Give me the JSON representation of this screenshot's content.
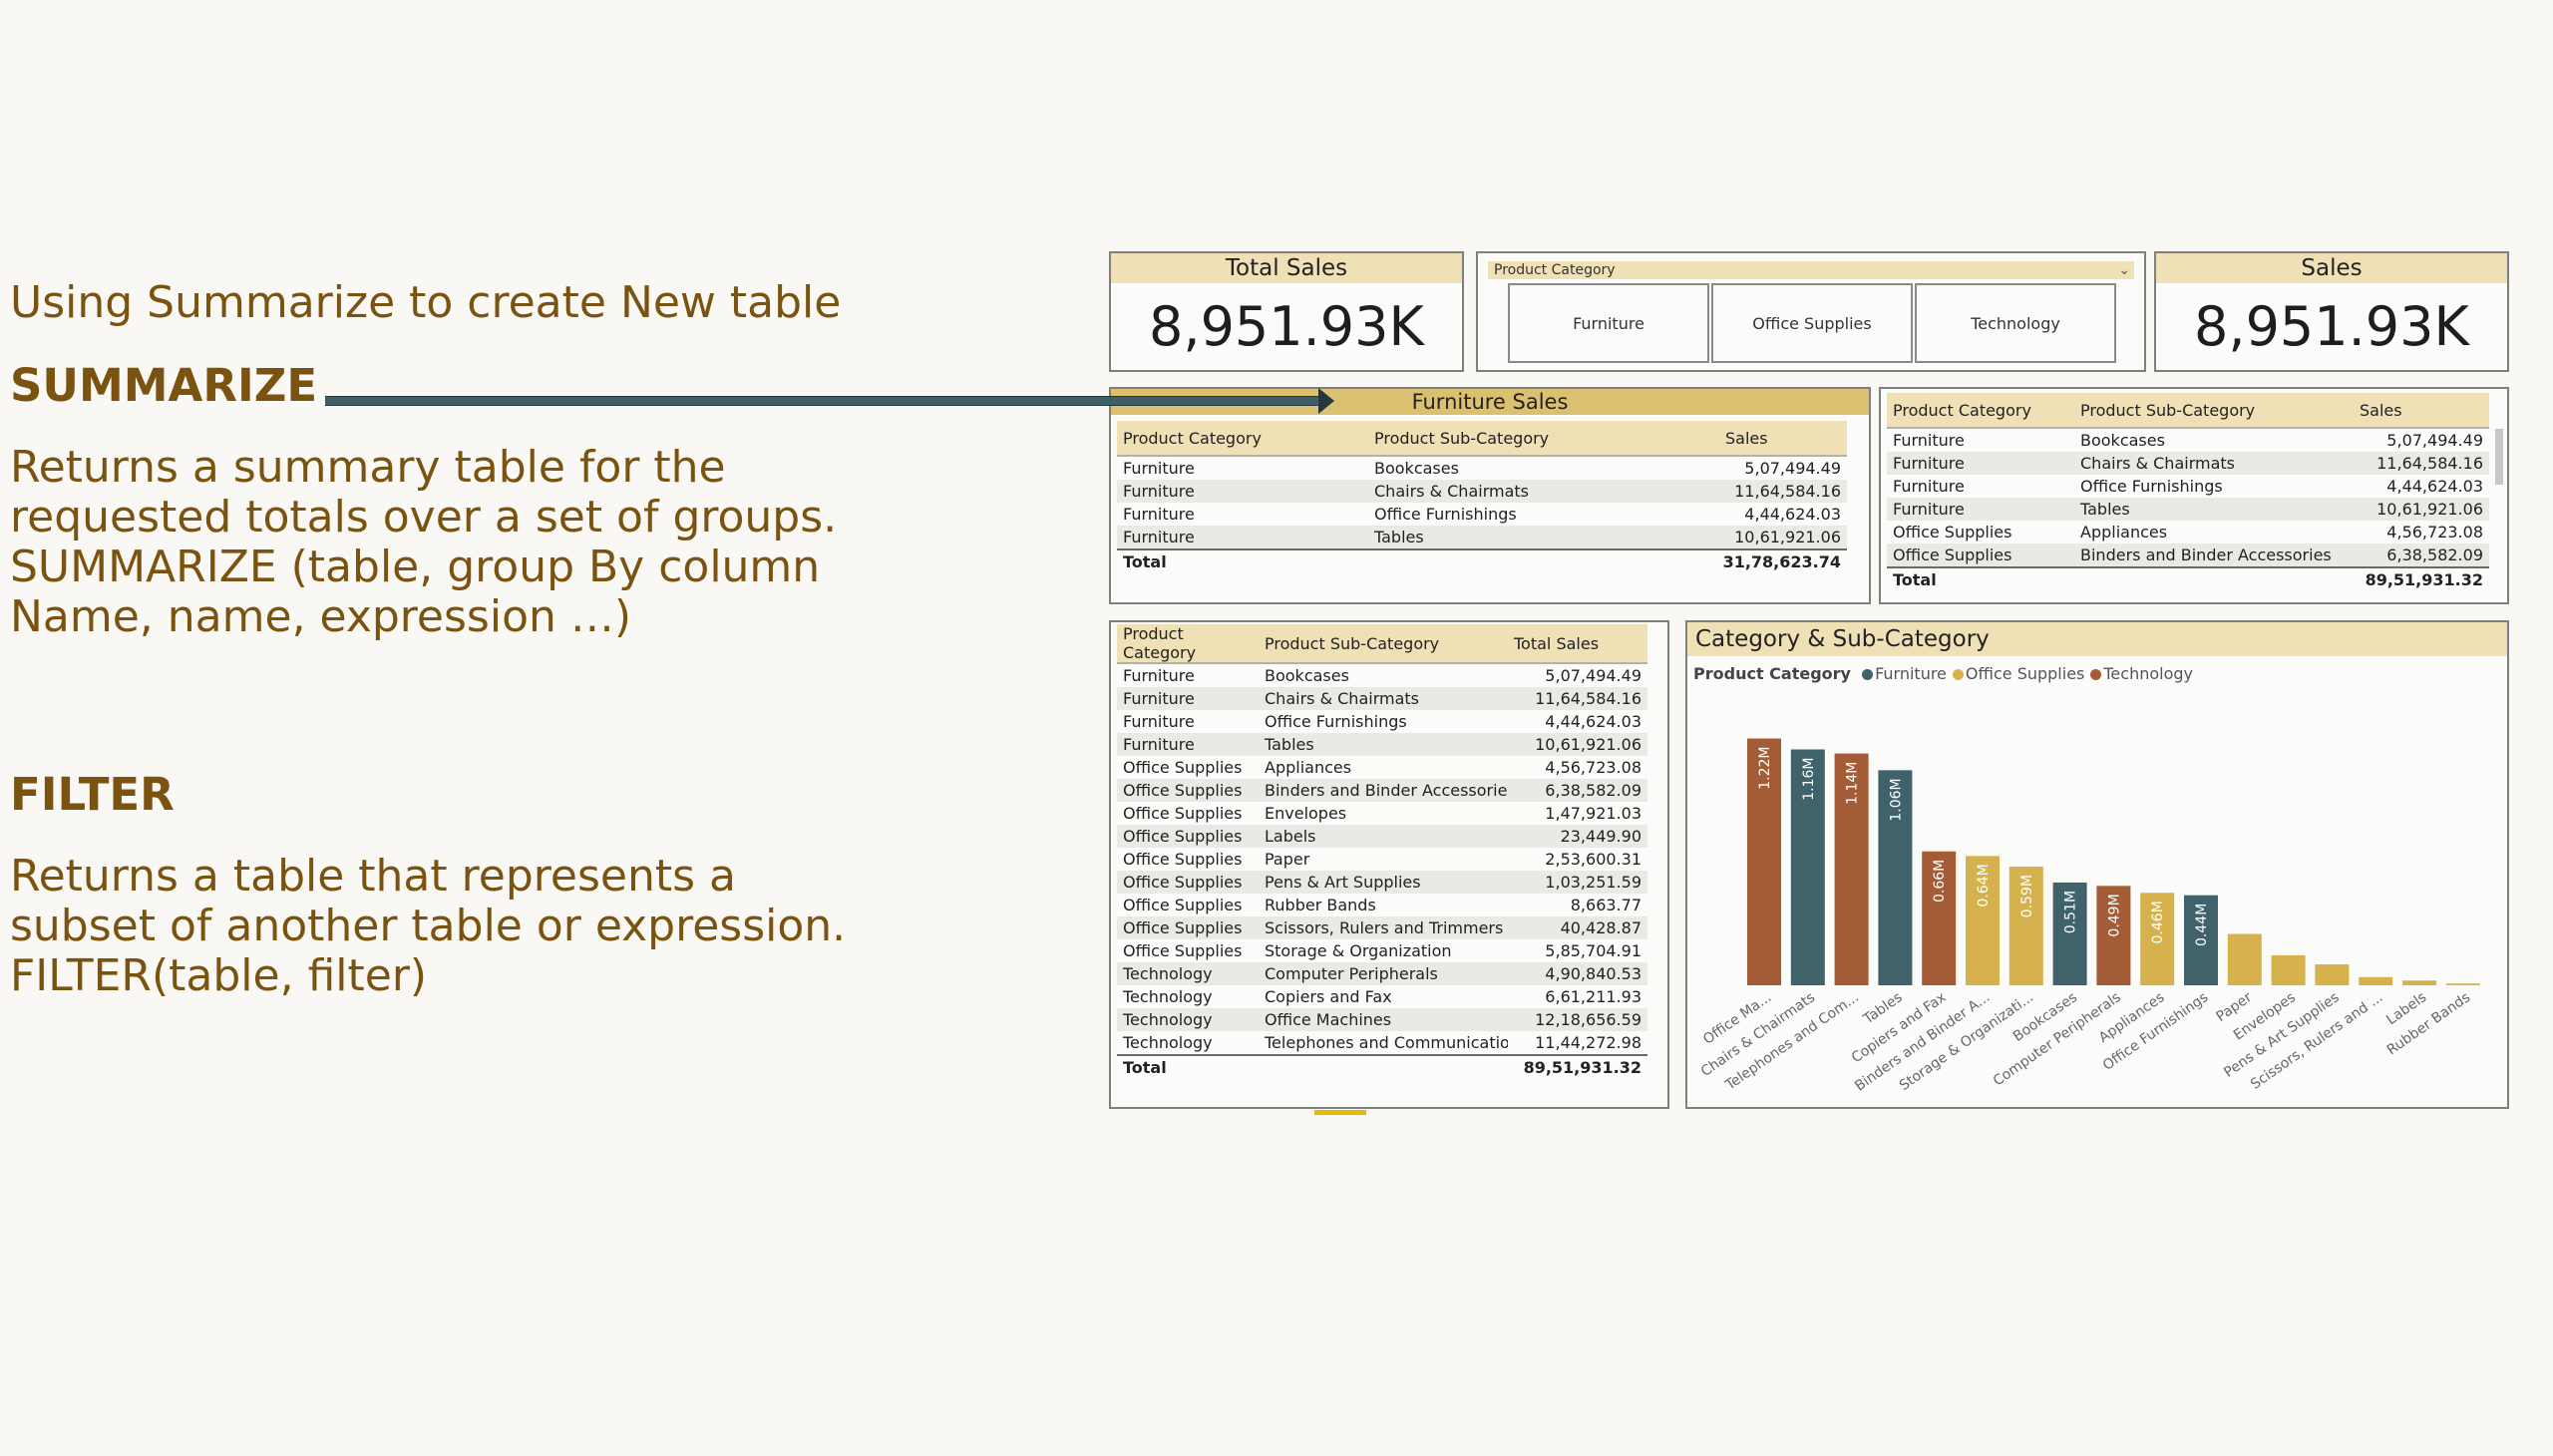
{
  "slide": {
    "heading": "Using Summarize to create New table",
    "summarize_kw": "SUMMARIZE",
    "summarize_desc": [
      "Returns a summary table for the",
      "requested totals over a set of groups.",
      "SUMMARIZE (table, group By column",
      "Name, name, expression …)"
    ],
    "filter_kw": "FILTER",
    "filter_desc": [
      "Returns a table that represents a",
      "subset of another table or expression.",
      "FILTER(table, filter)"
    ]
  },
  "colors": {
    "text_brown": "#7b5310",
    "header_bg": "#efe1b5",
    "furniture": "#3f626b",
    "office_supplies": "#d6b24e",
    "technology": "#a35c36"
  },
  "kpi_total": {
    "title": "Total Sales",
    "value": "8,951.93K"
  },
  "kpi_sales": {
    "title": "Sales",
    "value": "8,951.93K"
  },
  "slicer": {
    "title": "Product Category",
    "options": [
      "Furniture",
      "Office Supplies",
      "Technology"
    ]
  },
  "furniture_table": {
    "title": "Furniture Sales",
    "headers": [
      "Product Category",
      "Product Sub-Category",
      "Sales"
    ],
    "rows": [
      [
        "Furniture",
        "Bookcases",
        "5,07,494.49"
      ],
      [
        "Furniture",
        "Chairs & Chairmats",
        "11,64,584.16"
      ],
      [
        "Furniture",
        "Office Furnishings",
        "4,44,624.03"
      ],
      [
        "Furniture",
        "Tables",
        "10,61,921.06"
      ]
    ],
    "total_label": "Total",
    "total_value": "31,78,623.74"
  },
  "right_table": {
    "headers": [
      "Product Category",
      "Product Sub-Category",
      "Sales"
    ],
    "rows": [
      [
        "Furniture",
        "Bookcases",
        "5,07,494.49"
      ],
      [
        "Furniture",
        "Chairs & Chairmats",
        "11,64,584.16"
      ],
      [
        "Furniture",
        "Office Furnishings",
        "4,44,624.03"
      ],
      [
        "Furniture",
        "Tables",
        "10,61,921.06"
      ],
      [
        "Office Supplies",
        "Appliances",
        "4,56,723.08"
      ],
      [
        "Office Supplies",
        "Binders and Binder Accessories",
        "6,38,582.09"
      ]
    ],
    "total_label": "Total",
    "total_value": "89,51,931.32"
  },
  "summary_table": {
    "headers": [
      "Product Category",
      "Product Sub-Category",
      "Total Sales"
    ],
    "rows": [
      [
        "Furniture",
        "Bookcases",
        "5,07,494.49"
      ],
      [
        "Furniture",
        "Chairs & Chairmats",
        "11,64,584.16"
      ],
      [
        "Furniture",
        "Office Furnishings",
        "4,44,624.03"
      ],
      [
        "Furniture",
        "Tables",
        "10,61,921.06"
      ],
      [
        "Office Supplies",
        "Appliances",
        "4,56,723.08"
      ],
      [
        "Office Supplies",
        "Binders and Binder Accessories",
        "6,38,582.09"
      ],
      [
        "Office Supplies",
        "Envelopes",
        "1,47,921.03"
      ],
      [
        "Office Supplies",
        "Labels",
        "23,449.90"
      ],
      [
        "Office Supplies",
        "Paper",
        "2,53,600.31"
      ],
      [
        "Office Supplies",
        "Pens & Art Supplies",
        "1,03,251.59"
      ],
      [
        "Office Supplies",
        "Rubber Bands",
        "8,663.77"
      ],
      [
        "Office Supplies",
        "Scissors, Rulers and Trimmers",
        "40,428.87"
      ],
      [
        "Office Supplies",
        "Storage & Organization",
        "5,85,704.91"
      ],
      [
        "Technology",
        "Computer Peripherals",
        "4,90,840.53"
      ],
      [
        "Technology",
        "Copiers and Fax",
        "6,61,211.93"
      ],
      [
        "Technology",
        "Office Machines",
        "12,18,656.59"
      ],
      [
        "Technology",
        "Telephones and Communication",
        "11,44,272.98"
      ]
    ],
    "total_label": "Total",
    "total_value": "89,51,931.32"
  },
  "chart_panel": {
    "title": "Category & Sub-Category",
    "legend_title": "Product Category",
    "legend": [
      "Furniture",
      "Office Supplies",
      "Technology"
    ]
  },
  "chart_data": {
    "type": "bar",
    "title": "Category & Sub-Category",
    "legend_title": "Product Category",
    "categories": [
      "Office Ma...",
      "Chairs & Chairmats",
      "Telephones and Com...",
      "Tables",
      "Copiers and Fax",
      "Binders and Binder A...",
      "Storage & Organizati...",
      "Bookcases",
      "Computer Peripherals",
      "Appliances",
      "Office Furnishings",
      "Paper",
      "Envelopes",
      "Pens & Art Supplies",
      "Scissors, Rulers and ...",
      "Labels",
      "Rubber Bands"
    ],
    "values": [
      1218656.59,
      1164584.16,
      1144272.98,
      1061921.06,
      661211.93,
      638582.09,
      585704.91,
      507494.49,
      490840.53,
      456723.08,
      444624.03,
      253600.31,
      147921.03,
      103251.59,
      40428.87,
      23449.9,
      8663.77
    ],
    "value_labels": [
      "1.22M",
      "1.16M",
      "1.14M",
      "1.06M",
      "0.66M",
      "0.64M",
      "0.59M",
      "0.51M",
      "0.49M",
      "0.46M",
      "0.44M",
      "",
      "",
      "",
      "",
      "",
      ""
    ],
    "bar_categories": [
      "Technology",
      "Furniture",
      "Technology",
      "Furniture",
      "Technology",
      "Office Supplies",
      "Office Supplies",
      "Furniture",
      "Technology",
      "Office Supplies",
      "Furniture",
      "Office Supplies",
      "Office Supplies",
      "Office Supplies",
      "Office Supplies",
      "Office Supplies",
      "Office Supplies"
    ],
    "series_colors": {
      "Furniture": "#3f626b",
      "Office Supplies": "#d6b24e",
      "Technology": "#a35c36"
    },
    "ylim": [
      0,
      1300000
    ],
    "grid": false,
    "legend_position": "top-left"
  }
}
